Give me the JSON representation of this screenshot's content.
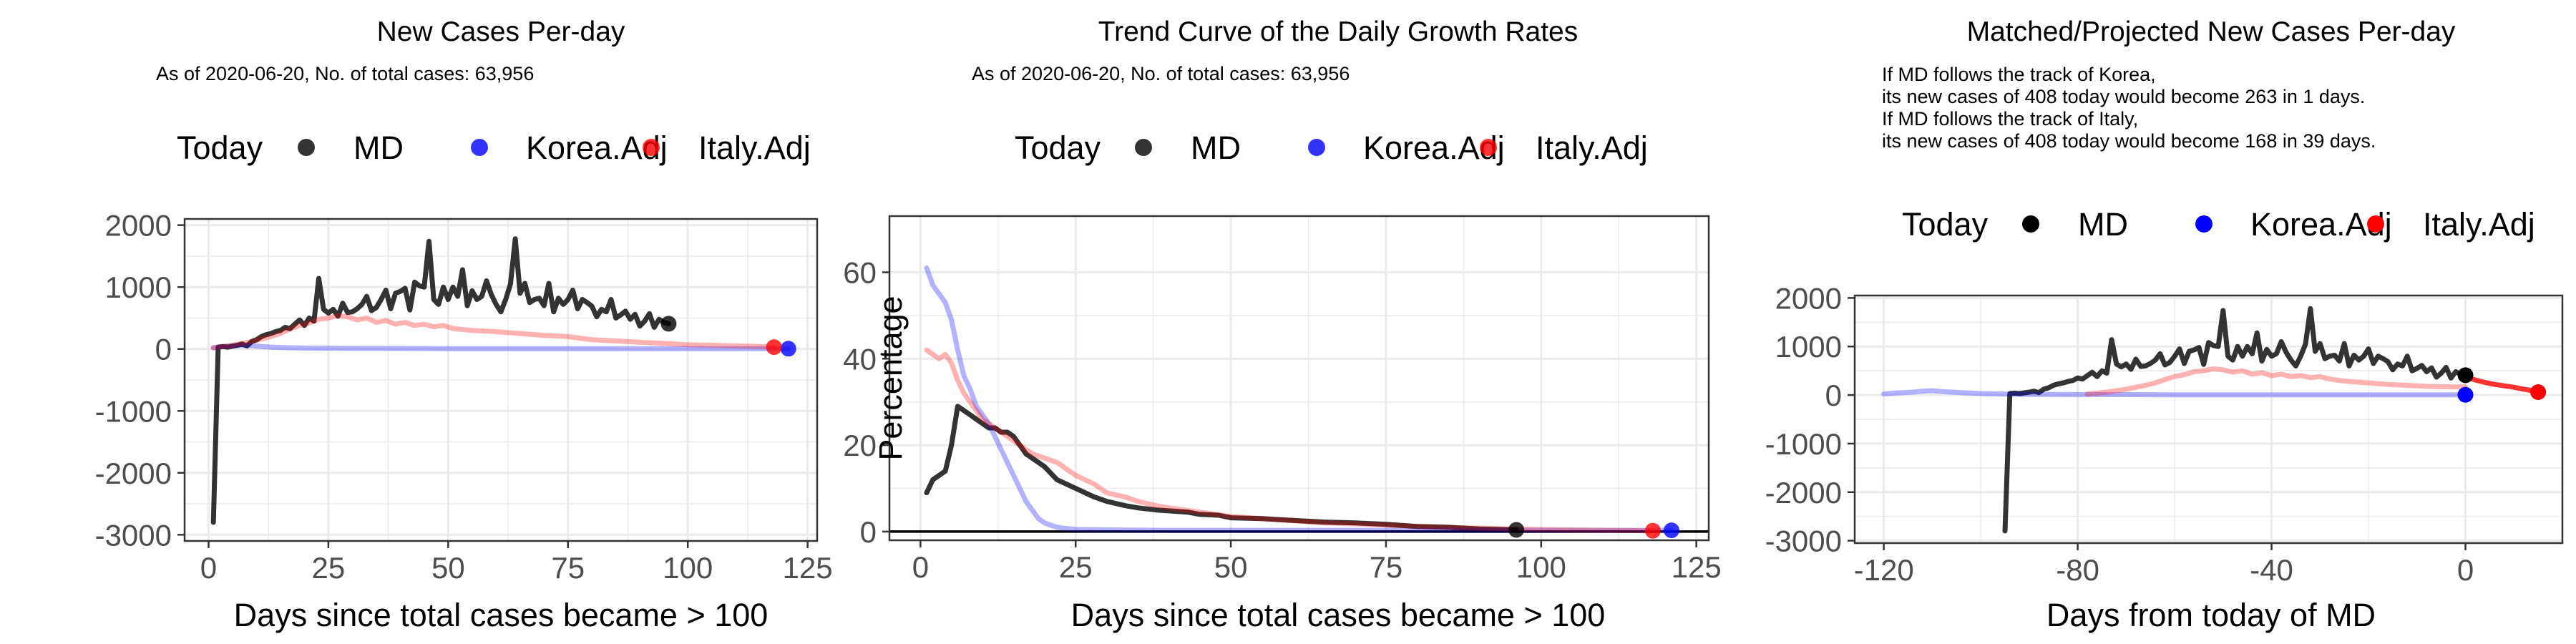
{
  "colors": {
    "MD": "#000000",
    "Korea.Adj": "#0000ff",
    "Italy.Adj": "#ff0000",
    "grid": "#ebebeb",
    "panel_border": "#333333"
  },
  "legend": {
    "title": "Today",
    "items": [
      "MD",
      "Korea.Adj",
      "Italy.Adj"
    ]
  },
  "chart_data": [
    {
      "type": "line",
      "title": "New Cases Per-day",
      "subtitle": "As of 2020-06-20, No. of total cases: 63,956",
      "xlabel": "Days since total cases became > 100",
      "ylabel": "",
      "xlim": [
        -5,
        127
      ],
      "ylim": [
        -3100,
        2100
      ],
      "xticks": [
        0,
        25,
        50,
        75,
        100,
        125
      ],
      "yticks": [
        -3000,
        -2000,
        -1000,
        0,
        1000,
        2000
      ],
      "grid": true,
      "legend_position": "top",
      "series": [
        {
          "name": "MD",
          "alpha": 0.8,
          "x": [
            1,
            2,
            3,
            4,
            5,
            6,
            7,
            8,
            9,
            10,
            11,
            12,
            13,
            14,
            15,
            16,
            17,
            18,
            19,
            20,
            21,
            22,
            23,
            24,
            25,
            26,
            27,
            28,
            29,
            30,
            31,
            32,
            33,
            34,
            35,
            36,
            37,
            38,
            39,
            40,
            41,
            42,
            43,
            44,
            45,
            46,
            47,
            48,
            49,
            50,
            51,
            52,
            53,
            54,
            55,
            56,
            57,
            58,
            59,
            60,
            61,
            62,
            63,
            64,
            65,
            66,
            67,
            68,
            69,
            70,
            71,
            72,
            73,
            74,
            75,
            76,
            77,
            78,
            79,
            80,
            81,
            82,
            83,
            84,
            85,
            86,
            87,
            88,
            89,
            90,
            91,
            92,
            93,
            94,
            95,
            96
          ],
          "y": [
            -2800,
            30,
            40,
            30,
            45,
            60,
            80,
            50,
            120,
            150,
            200,
            230,
            250,
            280,
            300,
            350,
            330,
            400,
            470,
            380,
            500,
            450,
            1140,
            640,
            580,
            640,
            530,
            740,
            590,
            600,
            650,
            720,
            850,
            620,
            670,
            800,
            950,
            650,
            900,
            930,
            980,
            630,
            1080,
            1020,
            1000,
            1740,
            800,
            720,
            1000,
            800,
            1000,
            850,
            1280,
            700,
            940,
            800,
            850,
            1100,
            880,
            720,
            600,
            800,
            1050,
            1780,
            900,
            1060,
            750,
            800,
            820,
            700,
            1060,
            600,
            820,
            720,
            800,
            950,
            650,
            800,
            750,
            690,
            520,
            640,
            600,
            800,
            500,
            550,
            610,
            480,
            560,
            370,
            450,
            570,
            350,
            480,
            430,
            408
          ]
        },
        {
          "name": "Korea.Adj",
          "alpha": 0.3,
          "x": [
            1,
            3,
            5,
            7,
            9,
            11,
            13,
            15,
            20,
            30,
            40,
            50,
            60,
            70,
            80,
            90,
            100,
            110,
            115,
            118,
            121
          ],
          "y": [
            20,
            40,
            50,
            60,
            55,
            40,
            30,
            25,
            15,
            10,
            8,
            6,
            5,
            5,
            5,
            5,
            5,
            5,
            5,
            5,
            5
          ]
        },
        {
          "name": "Italy.Adj",
          "alpha": 0.3,
          "x": [
            1,
            3,
            5,
            7,
            9,
            11,
            13,
            15,
            17,
            19,
            21,
            23,
            25,
            27,
            29,
            31,
            33,
            35,
            37,
            39,
            41,
            43,
            45,
            47,
            49,
            51,
            55,
            60,
            65,
            70,
            75,
            80,
            85,
            90,
            95,
            100,
            105,
            110,
            113,
            115,
            118
          ],
          "y": [
            20,
            40,
            60,
            90,
            120,
            160,
            200,
            250,
            320,
            380,
            420,
            480,
            500,
            540,
            520,
            470,
            500,
            430,
            460,
            400,
            430,
            380,
            400,
            360,
            380,
            330,
            300,
            280,
            250,
            220,
            200,
            150,
            130,
            110,
            90,
            70,
            60,
            50,
            45,
            40,
            30
          ]
        }
      ],
      "today_points": [
        {
          "name": "MD",
          "x": 96,
          "y": 408
        },
        {
          "name": "Korea.Adj",
          "x": 121,
          "y": 5
        },
        {
          "name": "Italy.Adj",
          "x": 118,
          "y": 30
        }
      ]
    },
    {
      "type": "line",
      "title": "Trend Curve of the Daily Growth Rates",
      "subtitle": "As of 2020-06-20, No. of total cases: 63,956",
      "xlabel": "Days since total cases became > 100",
      "ylabel": "Percentage",
      "xlim": [
        -5,
        127
      ],
      "ylim": [
        -2,
        73
      ],
      "xticks": [
        0,
        25,
        50,
        75,
        100,
        125
      ],
      "yticks": [
        0,
        20,
        40,
        60
      ],
      "grid": true,
      "hline": 0,
      "legend_position": "top",
      "series": [
        {
          "name": "MD",
          "alpha": 0.8,
          "x": [
            1,
            2,
            3,
            4,
            5,
            6,
            7,
            8,
            9,
            10,
            11,
            12,
            13,
            14,
            15,
            16,
            17,
            18,
            19,
            20,
            22,
            25,
            28,
            30,
            33,
            35,
            38,
            40,
            43,
            45,
            48,
            50,
            55,
            60,
            65,
            70,
            75,
            80,
            85,
            90,
            96
          ],
          "y": [
            9,
            12,
            13,
            14,
            20,
            29,
            28,
            27,
            26,
            25,
            24,
            24,
            23,
            23,
            22,
            20,
            18,
            17,
            16,
            15,
            12,
            10,
            8,
            7,
            6,
            5.5,
            5,
            4.8,
            4.5,
            4,
            3.8,
            3.2,
            3,
            2.6,
            2.2,
            2,
            1.7,
            1.2,
            1,
            0.6,
            0.4
          ]
        },
        {
          "name": "Korea.Adj",
          "alpha": 0.3,
          "x": [
            1,
            2,
            3,
            4,
            5,
            6,
            7,
            8,
            9,
            10,
            11,
            12,
            13,
            14,
            15,
            16,
            17,
            18,
            19,
            20,
            21,
            22,
            23,
            25,
            30,
            40,
            50,
            60,
            70,
            80,
            90,
            100,
            110,
            121
          ],
          "y": [
            61,
            57,
            55,
            53,
            49,
            42,
            36,
            33,
            29,
            27,
            25,
            22,
            19,
            16,
            13,
            10,
            7,
            5,
            3,
            2,
            1.5,
            1,
            0.8,
            0.5,
            0.4,
            0.3,
            0.3,
            0.3,
            0.3,
            0.3,
            0.3,
            0.3,
            0.3,
            0.3
          ]
        },
        {
          "name": "Italy.Adj",
          "alpha": 0.3,
          "x": [
            1,
            2,
            3,
            4,
            5,
            6,
            7,
            8,
            9,
            10,
            12,
            14,
            16,
            18,
            20,
            22,
            25,
            28,
            30,
            33,
            35,
            38,
            40,
            45,
            50,
            55,
            60,
            65,
            70,
            75,
            80,
            85,
            90,
            95,
            100,
            105,
            110,
            118
          ],
          "y": [
            42,
            41,
            40,
            41,
            39,
            35,
            32,
            30,
            28,
            26,
            24,
            22,
            20,
            18,
            17,
            16,
            13,
            11,
            9,
            8,
            7,
            6,
            5.5,
            4.5,
            3.5,
            3,
            2.5,
            2,
            1.8,
            1.5,
            1.2,
            1,
            0.8,
            0.6,
            0.5,
            0.4,
            0.3,
            0.2
          ]
        }
      ],
      "today_points": [
        {
          "name": "MD",
          "x": 96,
          "y": 0.4
        },
        {
          "name": "Korea.Adj",
          "x": 121,
          "y": 0.3
        },
        {
          "name": "Italy.Adj",
          "x": 118,
          "y": 0.2
        }
      ]
    },
    {
      "type": "line",
      "title": "Matched/Projected New Cases Per-day",
      "subtitle_lines": [
        "If MD follows the track of Korea,",
        "its new cases of 408 today would become 263 in 1 days.",
        "If MD follows the track of Italy,",
        "its new cases of 408 today would become 168 in 39 days."
      ],
      "xlabel": "Days from today of MD",
      "ylabel": "",
      "xlim": [
        -126,
        20
      ],
      "ylim": [
        -3050,
        2050
      ],
      "xticks": [
        -120,
        -80,
        -40,
        0
      ],
      "yticks": [
        -3000,
        -2000,
        -1000,
        0,
        1000,
        2000
      ],
      "grid": true,
      "legend_position": "top",
      "series": [
        {
          "name": "MD",
          "alpha": 0.8,
          "x": [
            -95,
            -94,
            -93,
            -92,
            -91,
            -90,
            -89,
            -88,
            -87,
            -86,
            -85,
            -84,
            -83,
            -82,
            -81,
            -80,
            -79,
            -78,
            -77,
            -76,
            -75,
            -74,
            -73,
            -72,
            -71,
            -70,
            -69,
            -68,
            -67,
            -66,
            -65,
            -64,
            -63,
            -62,
            -61,
            -60,
            -59,
            -58,
            -57,
            -56,
            -55,
            -54,
            -53,
            -52,
            -51,
            -50,
            -49,
            -48,
            -47,
            -46,
            -45,
            -44,
            -43,
            -42,
            -41,
            -40,
            -39,
            -38,
            -37,
            -36,
            -35,
            -34,
            -33,
            -32,
            -31,
            -30,
            -29,
            -28,
            -27,
            -26,
            -25,
            -24,
            -23,
            -22,
            -21,
            -20,
            -19,
            -18,
            -17,
            -16,
            -15,
            -14,
            -13,
            -12,
            -11,
            -10,
            -9,
            -8,
            -7,
            -6,
            -5,
            -4,
            -3,
            -2,
            -1,
            0
          ],
          "y": [
            -2800,
            30,
            40,
            30,
            45,
            60,
            80,
            50,
            120,
            150,
            200,
            230,
            250,
            280,
            300,
            350,
            330,
            400,
            470,
            380,
            500,
            450,
            1140,
            640,
            580,
            640,
            530,
            740,
            590,
            600,
            650,
            720,
            850,
            620,
            670,
            800,
            950,
            650,
            900,
            930,
            980,
            630,
            1080,
            1020,
            1000,
            1740,
            800,
            720,
            1000,
            800,
            1000,
            850,
            1280,
            700,
            940,
            800,
            850,
            1100,
            880,
            720,
            600,
            800,
            1050,
            1780,
            900,
            1060,
            750,
            800,
            820,
            700,
            1060,
            600,
            820,
            720,
            800,
            950,
            650,
            800,
            750,
            690,
            520,
            640,
            600,
            800,
            500,
            550,
            610,
            480,
            560,
            370,
            450,
            570,
            350,
            480,
            430,
            408
          ]
        },
        {
          "name": "Korea.Adj",
          "alpha": 0.3,
          "x": [
            -120,
            -118,
            -116,
            -114,
            -112,
            -110,
            -108,
            -106,
            -104,
            -102,
            -100,
            -95,
            -90,
            -80,
            -70,
            -60,
            -50,
            -40,
            -30,
            -20,
            -10,
            0
          ],
          "y": [
            20,
            40,
            50,
            60,
            80,
            90,
            70,
            60,
            50,
            40,
            30,
            20,
            15,
            10,
            8,
            6,
            5,
            5,
            5,
            5,
            5,
            5
          ]
        },
        {
          "name": "Italy.Adj",
          "alpha": 0.3,
          "x": [
            -78,
            -76,
            -74,
            -72,
            -70,
            -68,
            -66,
            -64,
            -62,
            -60,
            -58,
            -56,
            -54,
            -52,
            -50,
            -48,
            -46,
            -44,
            -42,
            -40,
            -38,
            -36,
            -34,
            -32,
            -30,
            -28,
            -26,
            -24,
            -20,
            -16,
            -12,
            -8,
            -4,
            0
          ],
          "y": [
            20,
            40,
            60,
            90,
            120,
            160,
            200,
            250,
            320,
            380,
            420,
            480,
            500,
            540,
            520,
            470,
            500,
            430,
            460,
            400,
            430,
            380,
            400,
            360,
            380,
            330,
            300,
            280,
            250,
            220,
            200,
            180,
            170,
            168
          ]
        },
        {
          "name": "Italy.Adj",
          "alpha": 0.8,
          "x": [
            0,
            2,
            4,
            6,
            8,
            10,
            12,
            14,
            15
          ],
          "y": [
            370,
            310,
            260,
            220,
            190,
            160,
            120,
            90,
            60
          ]
        }
      ],
      "today_points": [
        {
          "name": "MD",
          "x": 0,
          "y": 408
        },
        {
          "name": "Korea.Adj",
          "x": 0,
          "y": 5
        },
        {
          "name": "Italy.Adj",
          "x": 15,
          "y": 60
        }
      ]
    }
  ]
}
